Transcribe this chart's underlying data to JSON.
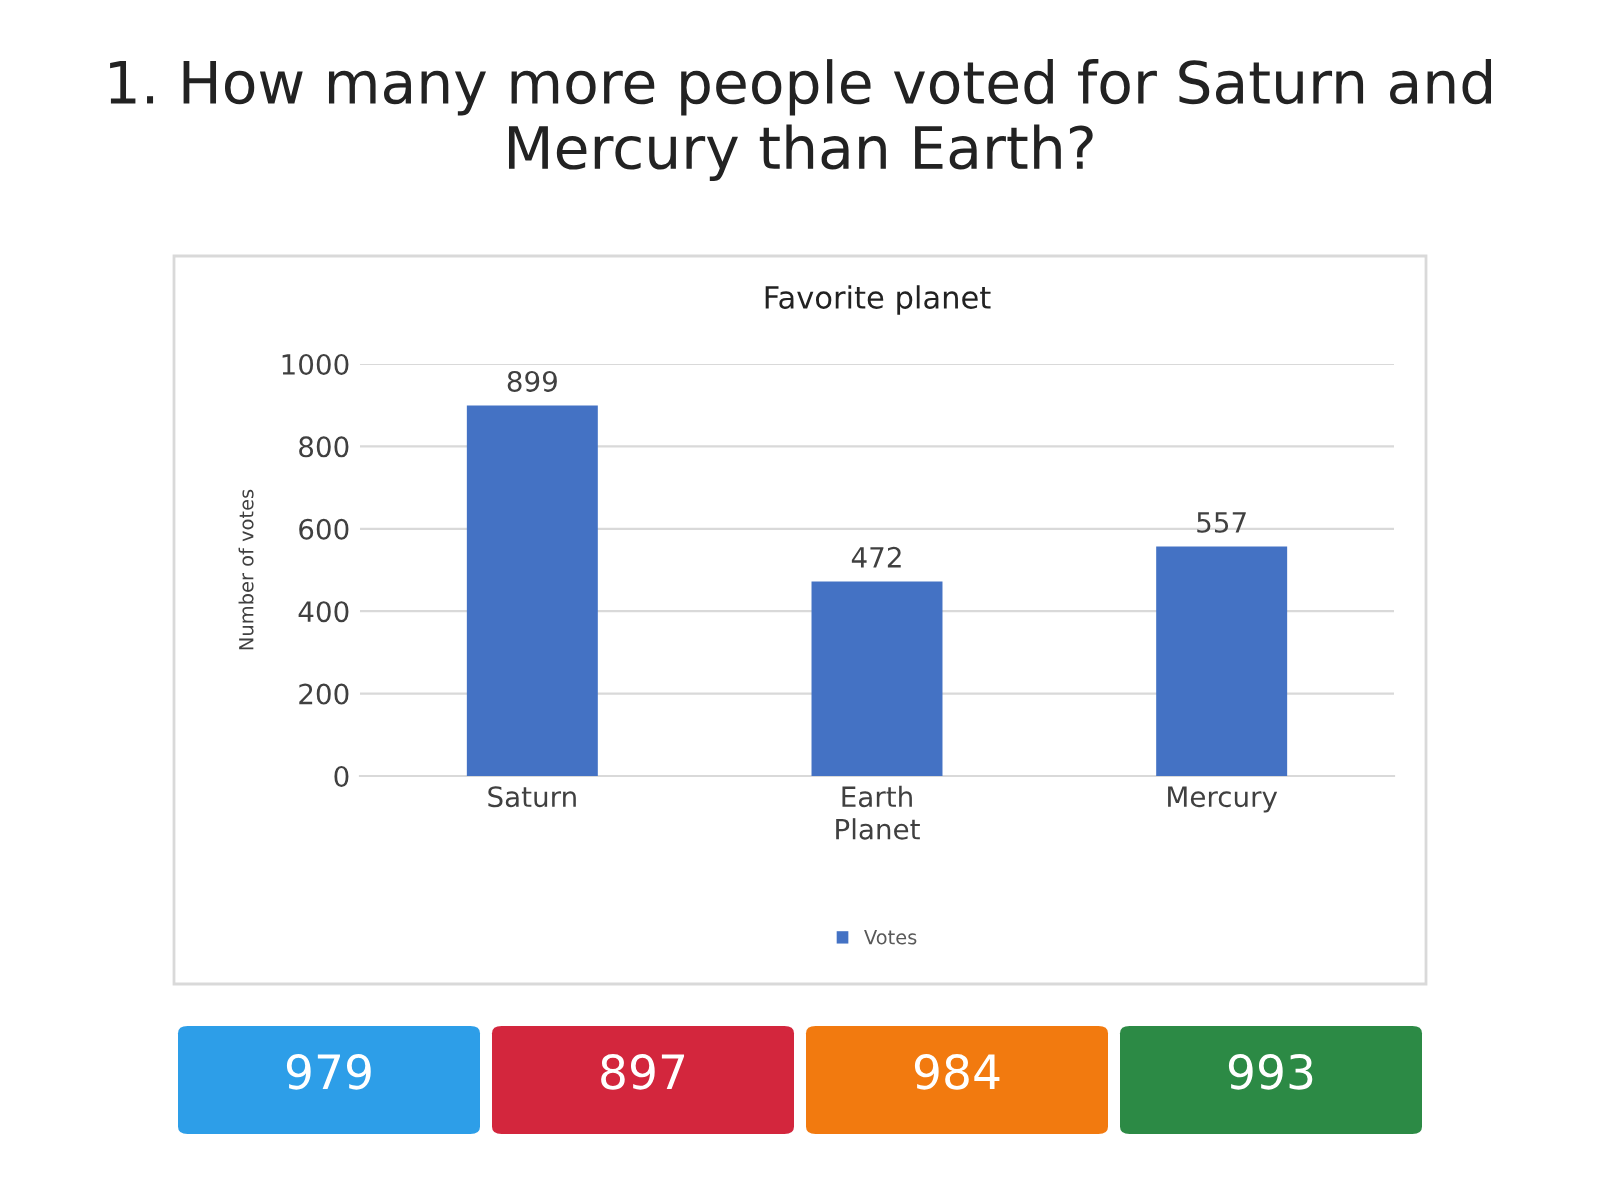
{
  "chart_data": {
    "type": "bar",
    "title": "1. How many more people voted for Saturn and Mercury than Earth?",
    "subtitle": "Favorite planet",
    "xlabel": "Planet",
    "ylabel": "Number of votes",
    "categories": [
      "Saturn",
      "Earth",
      "Mercury"
    ],
    "series": [
      {
        "name": "Votes",
        "color": "#4472c4",
        "values": [
          899,
          472,
          557
        ]
      }
    ],
    "ylim": [
      0,
      1000
    ],
    "yticks": [
      0,
      200,
      400,
      600,
      800,
      1000
    ],
    "grid": "y",
    "legend": "bottom",
    "data_labels": true,
    "annotations": [
      "979",
      "897",
      "984",
      "993"
    ]
  }
}
